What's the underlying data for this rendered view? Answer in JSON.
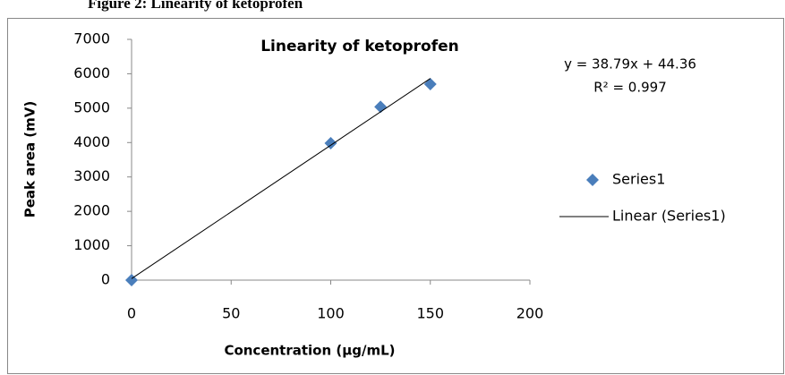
{
  "caption": "Figure 2: Linearity of ketoprofen",
  "chart_data": {
    "type": "scatter",
    "title": "Linearity of ketoprofen",
    "x_label": "Concentration (µg/mL)",
    "y_label": "Peak area (mV)",
    "series": [
      {
        "name": "Series1",
        "color": "#4a7ebb",
        "marker": "diamond",
        "x": [
          0,
          100,
          125,
          150
        ],
        "values": [
          0,
          3980,
          5040,
          5700
        ]
      },
      {
        "name": "Linear (Series1)",
        "color": "#000000",
        "kind": "line",
        "x": [
          0,
          150
        ],
        "values": [
          44,
          5863
        ]
      }
    ],
    "annotations": [
      "y = 38.79x + 44.36",
      "R² = 0.997"
    ],
    "xlim": [
      0,
      200
    ],
    "xticks": [
      0,
      50,
      100,
      150,
      200
    ],
    "ylim": [
      0,
      7000
    ],
    "yticks": [
      0,
      1000,
      2000,
      3000,
      4000,
      5000,
      6000,
      7000
    ],
    "grid": false,
    "legend": "right"
  }
}
